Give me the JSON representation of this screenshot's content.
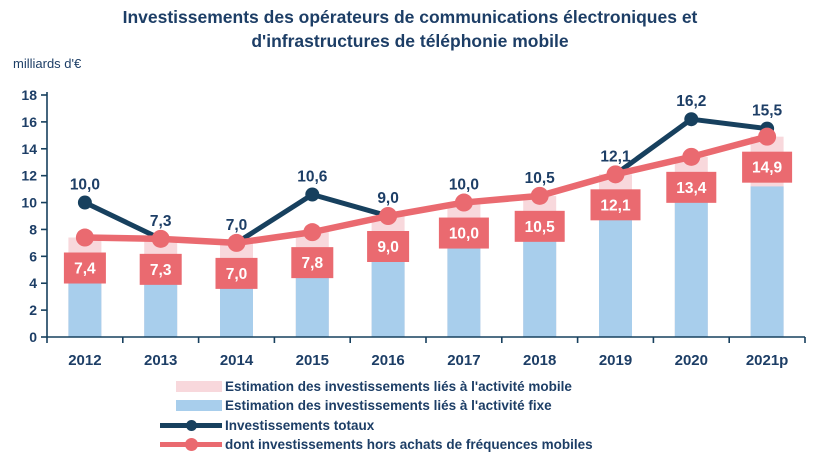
{
  "title": "Investissements des opérateurs de communications électroniques et d'infrastructures de téléphonie mobile",
  "unit_label": "milliards d'€",
  "colors": {
    "navy": "#1D3E66",
    "navy_line": "#17405E",
    "red": "#EA6A70",
    "light_pink": "#F8D8DC",
    "light_blue": "#A8CEEC",
    "label_text_on_red": "#FFFFFF",
    "background": "#FFFFFF"
  },
  "chart_data": {
    "type": "combo-bar-line",
    "title": "Investissements des opérateurs de communications électroniques et d'infrastructures de téléphonie mobile",
    "ylabel": "milliards d'€",
    "ylim": [
      0,
      18
    ],
    "y_ticks": [
      0,
      2,
      4,
      6,
      8,
      10,
      12,
      14,
      16,
      18
    ],
    "grid": false,
    "legend_position": "bottom",
    "categories": [
      "2012",
      "2013",
      "2014",
      "2015",
      "2016",
      "2017",
      "2018",
      "2019",
      "2020",
      "2021p"
    ],
    "series": [
      {
        "id": "mobile",
        "name": "Estimation des investissements liés à l'activité mobile",
        "type": "bar",
        "stacked": true,
        "color": "#F8D8DC",
        "estimated": true,
        "values": [
          3.0,
          2.9,
          2.6,
          2.9,
          3.1,
          3.3,
          3.2,
          3.1,
          2.9,
          3.7
        ],
        "note": "unlabeled in chart; stacked on fixe so stack top equals the 'hors achats' line values"
      },
      {
        "id": "fixe",
        "name": "Estimation des investissements liés à l'activité fixe",
        "type": "bar",
        "stacked": true,
        "color": "#A8CEEC",
        "estimated": true,
        "values": [
          4.4,
          4.4,
          4.4,
          4.9,
          5.9,
          6.7,
          7.3,
          9.0,
          10.5,
          11.2
        ],
        "note": "unlabeled in chart; values estimated from bar pixels"
      },
      {
        "id": "totaux",
        "name": "Investissements totaux",
        "type": "line",
        "color": "#17405E",
        "values": [
          10.0,
          7.3,
          7.0,
          10.6,
          9.0,
          10.0,
          10.5,
          12.1,
          16.2,
          15.5
        ],
        "labels": [
          "10,0",
          "7,3",
          "7,0",
          "10,6",
          "9,0",
          "10,0",
          "10,5",
          "12,1",
          "16,2",
          "15,5"
        ]
      },
      {
        "id": "hors_frequences",
        "name": "dont investissements hors achats de fréquences mobiles",
        "type": "line",
        "color": "#EA6A70",
        "values": [
          7.4,
          7.3,
          7.0,
          7.8,
          9.0,
          10.0,
          10.5,
          12.1,
          13.4,
          14.9
        ],
        "labels": [
          "7,4",
          "7,3",
          "7,0",
          "7,8",
          "9,0",
          "10,0",
          "10,5",
          "12,1",
          "13,4",
          "14,9"
        ]
      }
    ]
  }
}
